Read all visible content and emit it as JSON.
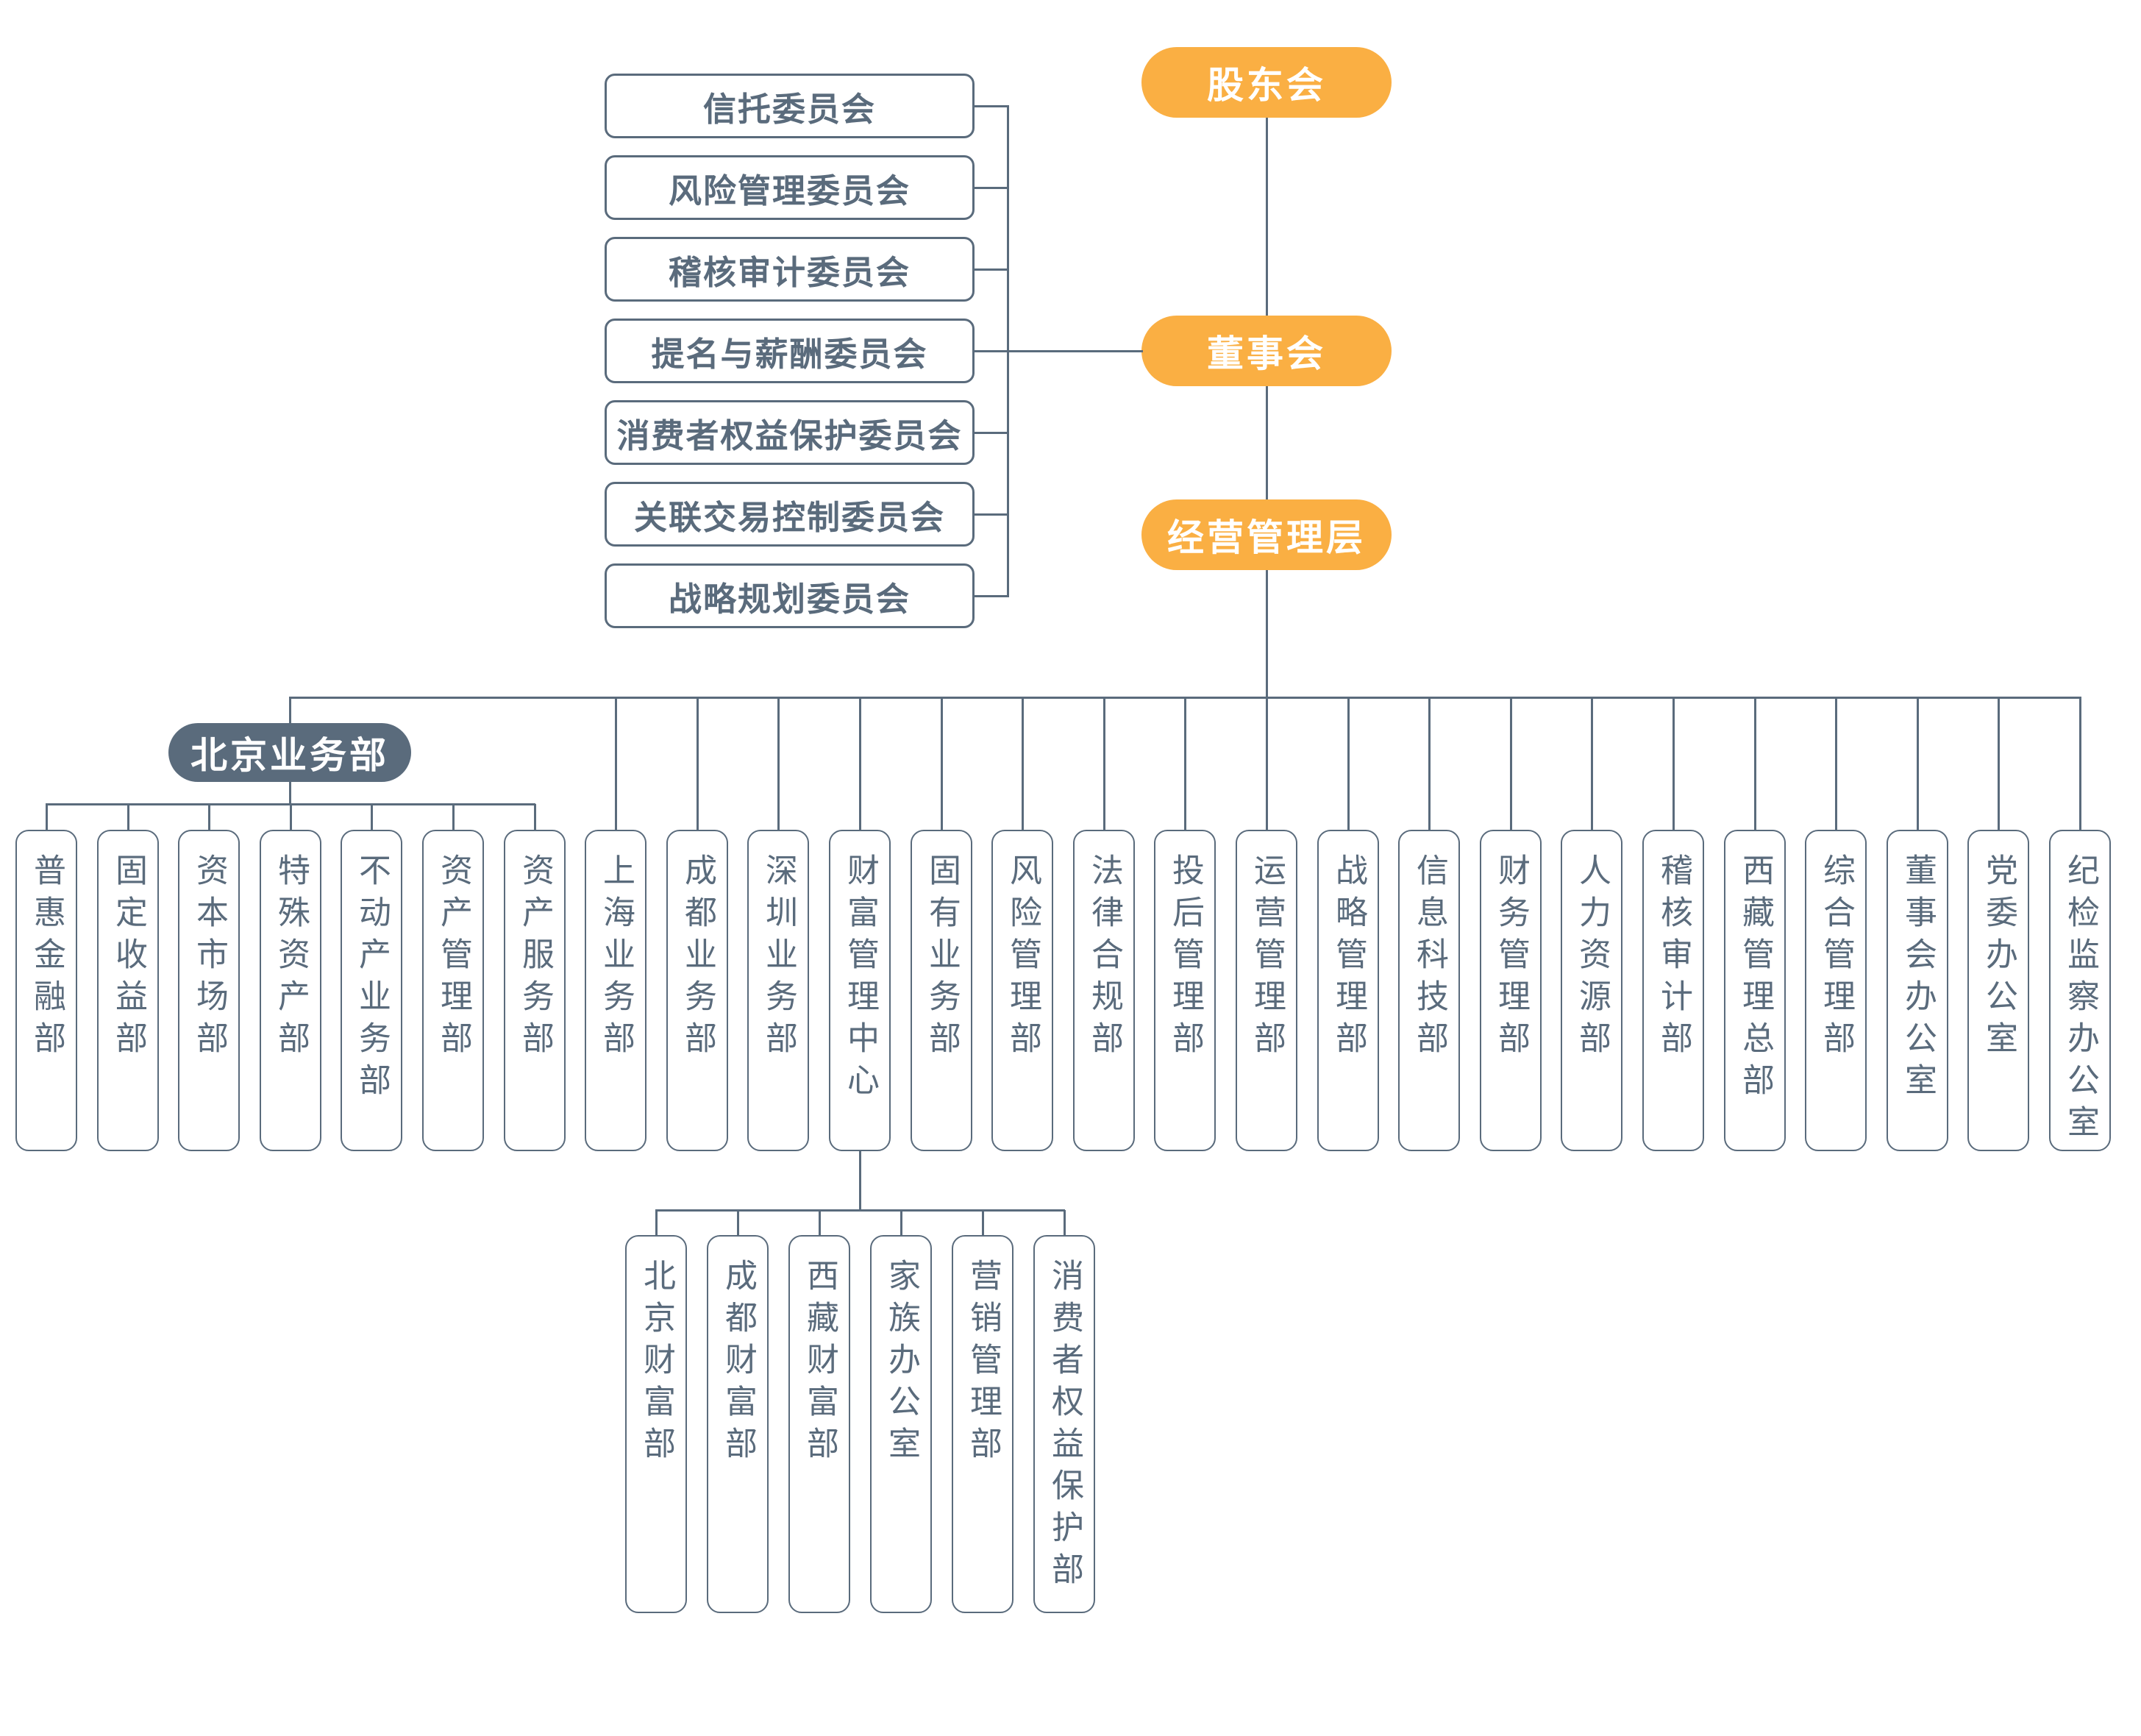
{
  "palette": {
    "orange": "#FAAF43",
    "slate": "#5A6B7C",
    "text": "#5A6B7C",
    "background": "#FFFFFF"
  },
  "governance": [
    {
      "label": "股东会"
    },
    {
      "label": "董事会"
    },
    {
      "label": "经营管理层"
    }
  ],
  "committees": [
    "信托委员会",
    "风险管理委员会",
    "稽核审计委员会",
    "提名与薪酬委员会",
    "消费者权益保护委员会",
    "关联交易控制委员会",
    "战略规划委员会"
  ],
  "beijing": {
    "label": "北京业务部",
    "children": [
      "普惠金融部",
      "固定收益部",
      "资本市场部",
      "特殊资产部",
      "不动产业务部",
      "资产管理部",
      "资产服务部"
    ]
  },
  "departments": [
    "上海业务部",
    "成都业务部",
    "深圳业务部",
    "财富管理中心",
    "固有业务部",
    "风险管理部",
    "法律合规部",
    "投后管理部",
    "运营管理部",
    "战略管理部",
    "信息科技部",
    "财务管理部",
    "人力资源部",
    "稽核审计部",
    "西藏管理总部",
    "综合管理部",
    "董事会办公室",
    "党委办公室",
    "纪检监察办公室"
  ],
  "wealth_center": {
    "parent_label": "财富管理中心",
    "children": [
      "北京财富部",
      "成都财富部",
      "西藏财富部",
      "家族办公室",
      "营销管理部",
      "消费者权益保护部"
    ]
  }
}
